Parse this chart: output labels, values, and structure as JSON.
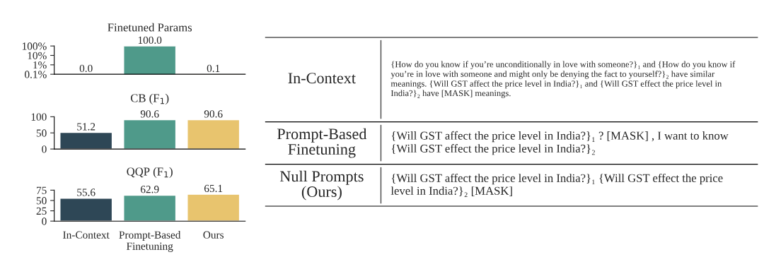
{
  "chart_data": [
    {
      "type": "bar",
      "title": "Finetuned Params",
      "categories": [
        null,
        null,
        null
      ],
      "values": [
        null,
        100.0,
        0.1
      ],
      "value_labels": [
        "0.0",
        "100.0",
        "0.1"
      ],
      "colors": [
        "#2e4756",
        "#4f9a8a",
        "#e8c46e"
      ],
      "log": true,
      "ylim": [
        0.1,
        100
      ],
      "yticks": [
        {
          "value": 0.1,
          "label": "0.1%"
        },
        {
          "value": 1,
          "label": "1%"
        },
        {
          "value": 10,
          "label": "10%"
        },
        {
          "value": 100,
          "label": "100%"
        }
      ],
      "grid": false,
      "tick_labels": "y"
    },
    {
      "type": "bar",
      "title": "CB (F$_{1}$)",
      "categories": [
        null,
        null,
        null
      ],
      "values": [
        51.2,
        90.6,
        90.6
      ],
      "colors": [
        "#2e4756",
        "#4f9a8a",
        "#e8c46e"
      ],
      "ylim": [
        0,
        100
      ],
      "yticks": [
        0,
        50,
        100
      ],
      "data_labels": true,
      "grid": false,
      "tick_labels": "y"
    },
    {
      "type": "bar",
      "title": "QQP (F$_{1}$)",
      "categories": [
        "In-Context",
        "Prompt-Based Finetuning",
        "Ours"
      ],
      "values": [
        55.6,
        62.9,
        65.1
      ],
      "colors": [
        "#2e4756",
        "#4f9a8a",
        "#e8c46e"
      ],
      "ylim": [
        0,
        75
      ],
      "yticks": [
        0,
        25,
        50,
        75
      ],
      "data_labels": true,
      "grid": false
    },
    {
      "type": "other",
      "annotations": [
        "In-Context",
        "{How do you know if you’re unconditionally in love with someone?}₁ and {How do you know if you’re in love with someone and might only be denying the fact to yourself?}₂ have similar meanings. {Will GST affect the price level in India?}₁ and {Will GST effect the price level in India?}₂ have [MASK] meanings.",
        "Prompt-Based Finetuning",
        "{Will GST affect the price level in India?}₁ ? [MASK] , I want to know {Will GST effect the price level in India?}₂",
        "Null Prompts (Ours)",
        "{Will GST affect the price level in India?}₁ {Will GST effect the price level in India?}₂ [MASK]"
      ]
    }
  ]
}
